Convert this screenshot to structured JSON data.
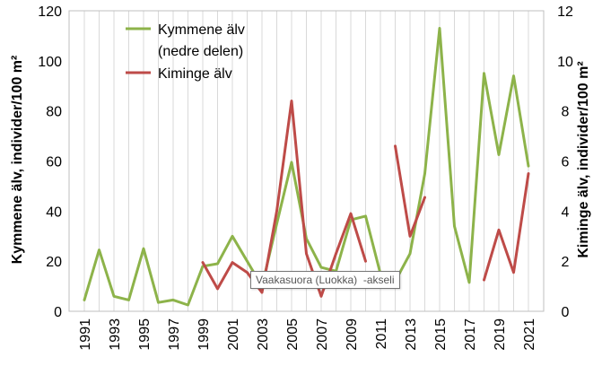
{
  "chart_data": {
    "type": "line",
    "x": [
      1991,
      1992,
      1993,
      1994,
      1995,
      1996,
      1997,
      1998,
      1999,
      2000,
      2001,
      2002,
      2003,
      2004,
      2005,
      2006,
      2007,
      2008,
      2009,
      2010,
      2011,
      2012,
      2013,
      2014,
      2015,
      2016,
      2017,
      2018,
      2019,
      2020,
      2021
    ],
    "x_tick_labels": [
      "1991",
      "1993",
      "1995",
      "1997",
      "1999",
      "2001",
      "2003",
      "2005",
      "2007",
      "2009",
      "2011",
      "2013",
      "2015",
      "2017",
      "2019",
      "2021"
    ],
    "y_left": {
      "label": "Kymmene älv, individer/100 m²",
      "ylim": [
        0,
        120
      ],
      "ticks": [
        "0",
        "20",
        "40",
        "60",
        "80",
        "100",
        "120"
      ]
    },
    "y_right": {
      "label": "Kiminge älv, individer/100 m²",
      "ylim": [
        0,
        12
      ],
      "ticks": [
        "0",
        "2",
        "4",
        "6",
        "8",
        "10",
        "12"
      ]
    },
    "series": [
      {
        "name_lines": [
          "Kymmene älv",
          "(nedre delen)"
        ],
        "color": "#8db34a",
        "axis": "left",
        "values": [
          4.5,
          24.5,
          6,
          4.5,
          25,
          3.5,
          4.5,
          2.5,
          18,
          19,
          30,
          20,
          10,
          35,
          59.5,
          29,
          17.5,
          16,
          36.5,
          38,
          15,
          12,
          23,
          55,
          113,
          34,
          11.5,
          95,
          62.5,
          94,
          58
        ]
      },
      {
        "name": "Kiminge älv",
        "color": "#be4b48",
        "axis": "right",
        "values": [
          null,
          null,
          null,
          null,
          null,
          null,
          null,
          null,
          1.95,
          0.9,
          1.95,
          1.55,
          0.75,
          4.0,
          8.4,
          2.3,
          0.6,
          2.3,
          3.9,
          2.0,
          null,
          6.6,
          3.0,
          4.55,
          null,
          null,
          null,
          1.25,
          3.25,
          1.55,
          5.5
        ]
      }
    ],
    "grid": "vertical",
    "legend": "top-left"
  },
  "tooltip": {
    "text": "Vaakasuora (Luokka)  -akseli"
  }
}
